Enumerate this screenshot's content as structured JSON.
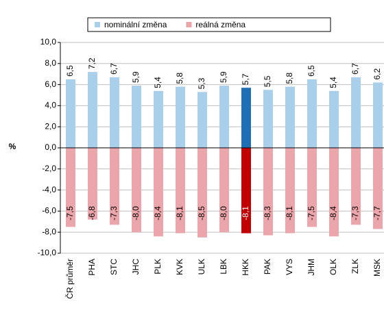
{
  "chart_data": {
    "type": "bar",
    "categories": [
      "ČR průměr",
      "PHA",
      "STC",
      "JHC",
      "PLK",
      "KVK",
      "ULK",
      "LBK",
      "HKK",
      "PAK",
      "VYS",
      "JHM",
      "OLK",
      "ZLK",
      "MSK"
    ],
    "series": [
      {
        "name": "nominální změna",
        "color": "#a9cfea",
        "colors": [
          "#a9cfea",
          "#a9cfea",
          "#a9cfea",
          "#a9cfea",
          "#a9cfea",
          "#a9cfea",
          "#a9cfea",
          "#a9cfea",
          "#1f6fb5",
          "#a9cfea",
          "#a9cfea",
          "#a9cfea",
          "#a9cfea",
          "#a9cfea",
          "#a9cfea"
        ],
        "values": [
          6.5,
          7.2,
          6.7,
          5.9,
          5.4,
          5.8,
          5.3,
          5.9,
          5.7,
          5.5,
          5.8,
          6.5,
          5.4,
          6.7,
          6.2
        ],
        "value_labels": [
          "6,5",
          "7,2",
          "6,7",
          "5,9",
          "5,4",
          "5,8",
          "5,3",
          "5,9",
          "5,7",
          "5,5",
          "5,8",
          "6,5",
          "5,4",
          "6,7",
          "6,2"
        ]
      },
      {
        "name": "reálná změna",
        "color": "#eba6ab",
        "colors": [
          "#eba6ab",
          "#eba6ab",
          "#eba6ab",
          "#eba6ab",
          "#eba6ab",
          "#eba6ab",
          "#eba6ab",
          "#eba6ab",
          "#c00000",
          "#eba6ab",
          "#eba6ab",
          "#eba6ab",
          "#eba6ab",
          "#eba6ab",
          "#eba6ab"
        ],
        "values": [
          -7.5,
          -6.8,
          -7.3,
          -8.0,
          -8.4,
          -8.1,
          -8.5,
          -8.0,
          -8.1,
          -8.3,
          -8.1,
          -7.5,
          -8.4,
          -7.3,
          -7.7
        ],
        "value_labels": [
          "-7,5",
          "-6,8",
          "-7,3",
          "-8,0",
          "-8,4",
          "-8,1",
          "-8,5",
          "-8,0",
          "-8,1",
          "-8,3",
          "-8,1",
          "-7,5",
          "-8,4",
          "-7,3",
          "-7,7"
        ]
      }
    ],
    "y_label": "%",
    "ylim": [
      -10,
      10
    ],
    "yticks": [
      {
        "value": -10,
        "label": "-10,0"
      },
      {
        "value": -8,
        "label": "-8,0"
      },
      {
        "value": -6,
        "label": "-6,0"
      },
      {
        "value": -4,
        "label": "-4,0"
      },
      {
        "value": -2,
        "label": "-2,0"
      },
      {
        "value": 0,
        "label": "0,0"
      },
      {
        "value": 2,
        "label": "2,0"
      },
      {
        "value": 4,
        "label": "4,0"
      },
      {
        "value": 6,
        "label": "6,0"
      },
      {
        "value": 8,
        "label": "8,0"
      },
      {
        "value": 10,
        "label": "10,0"
      }
    ],
    "grid": true,
    "legend": "top"
  }
}
